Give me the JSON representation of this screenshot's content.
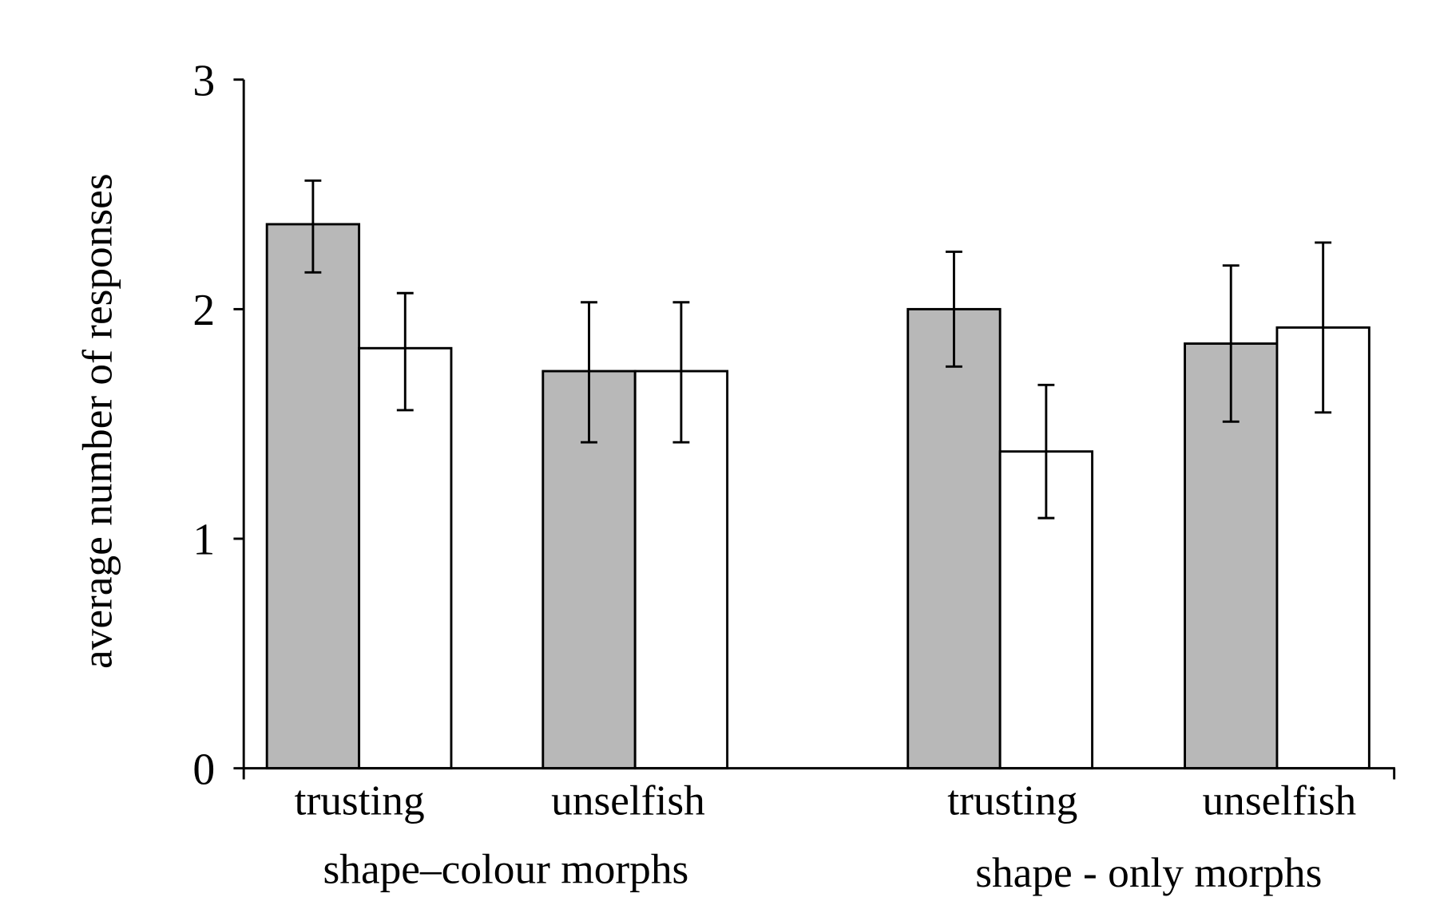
{
  "chart_data": {
    "type": "bar",
    "title": "",
    "xlabel": "",
    "ylabel": "average number of responses",
    "ylim": [
      0,
      3
    ],
    "yticks": [
      "0",
      "1",
      "2",
      "3"
    ],
    "groups": [
      {
        "label": "shape–colour morphs",
        "categories": [
          "trusting",
          "unselfish"
        ]
      },
      {
        "label": "shape - only morphs",
        "categories": [
          "trusting",
          "unselfish"
        ]
      }
    ],
    "categories": [
      "trusting",
      "unselfish",
      "trusting",
      "unselfish"
    ],
    "series": [
      {
        "fill": "#b8b8b8",
        "values": [
          2.37,
          1.73,
          2.0,
          1.85
        ],
        "err_low": [
          2.16,
          1.42,
          1.75,
          1.51
        ],
        "err_high": [
          2.56,
          2.03,
          2.25,
          2.19
        ]
      },
      {
        "fill": "#ffffff",
        "values": [
          1.83,
          1.73,
          1.38,
          1.92
        ],
        "err_low": [
          1.56,
          1.42,
          1.09,
          1.55
        ],
        "err_high": [
          2.07,
          2.03,
          1.67,
          2.29
        ]
      }
    ],
    "grid": false,
    "legend": "none"
  }
}
